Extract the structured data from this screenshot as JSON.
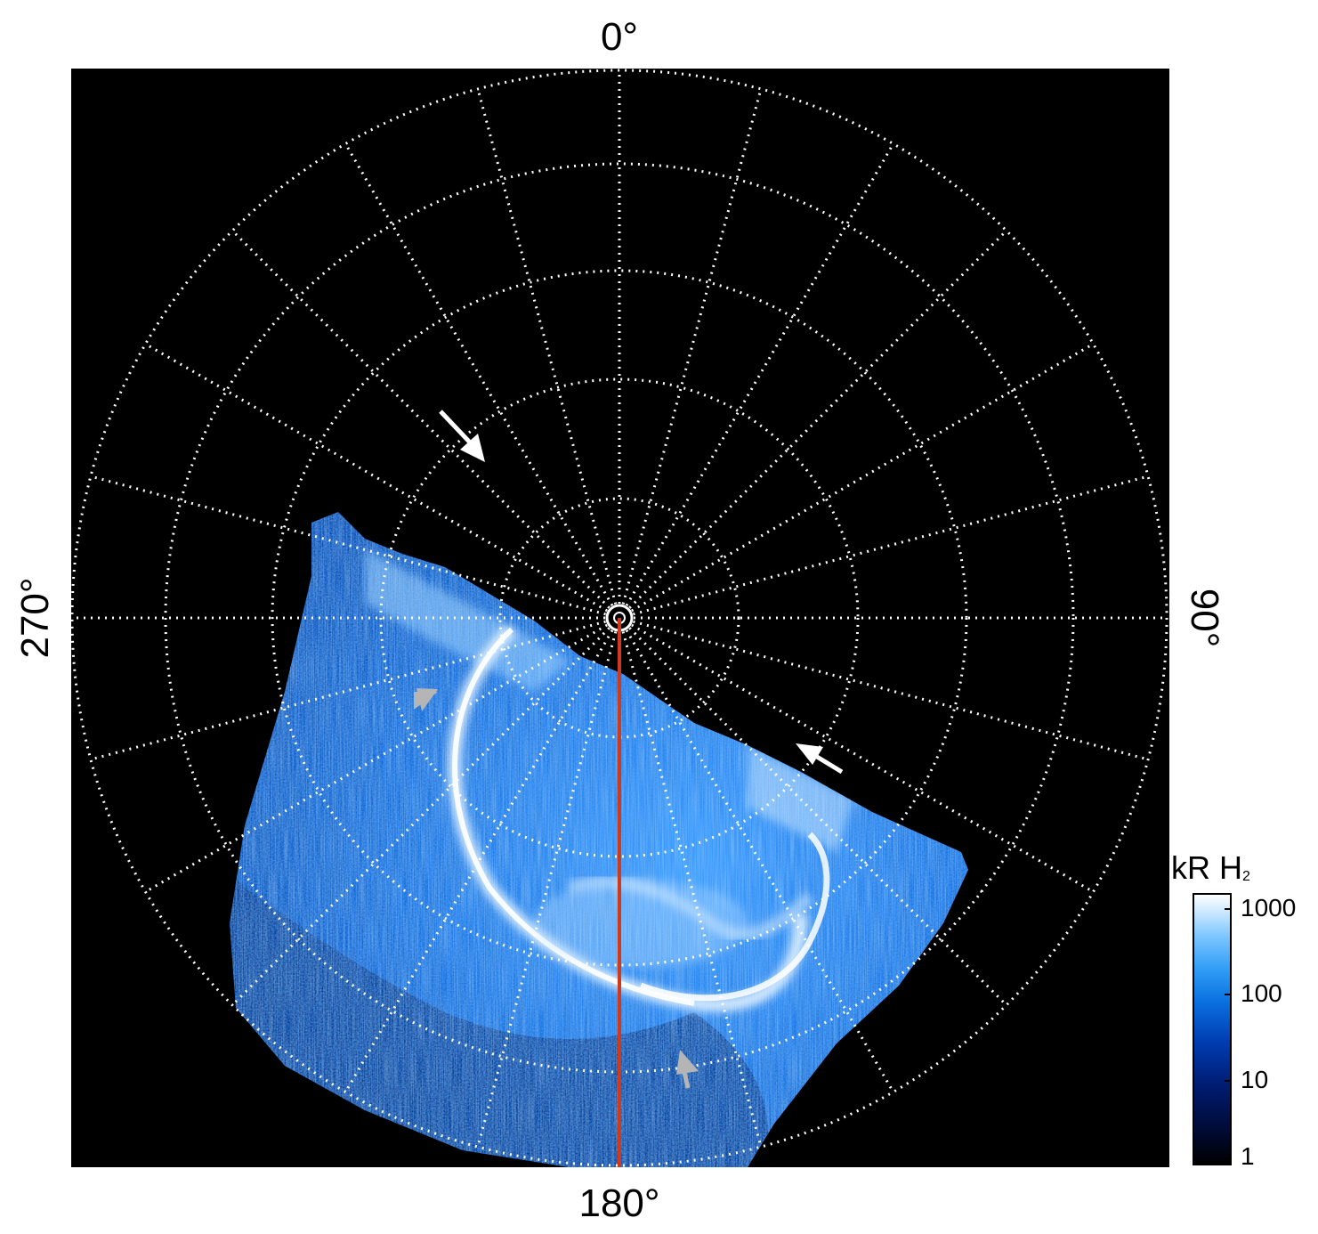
{
  "figure": {
    "axis_labels": {
      "top": "0°",
      "bottom": "180°",
      "left": "270°",
      "right": "90°"
    },
    "colorbar": {
      "title_main": "kR H",
      "title_sub": "2",
      "ticks": [
        "1000",
        "100",
        "10",
        "1"
      ]
    },
    "colors": {
      "background": "#000000",
      "grid": "#ffffff",
      "meridian_line": "#d03a1a",
      "arrow_white": "#ffffff",
      "arrow_gray": "#b5b5b5",
      "aurora_blue": "#1e7fe6"
    },
    "annotations": [
      "white-arrow",
      "white-arrow",
      "gray-arrow",
      "gray-arrow"
    ]
  }
}
